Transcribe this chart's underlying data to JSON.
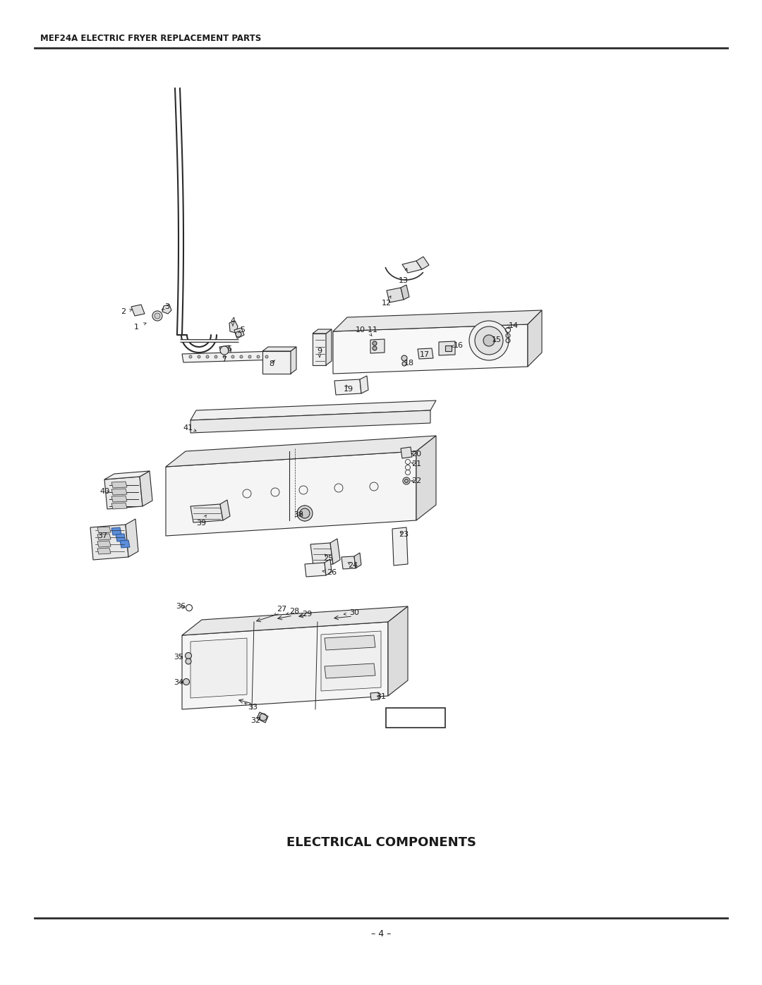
{
  "title_header": "MEF24A ELECTRIC FRYER REPLACEMENT PARTS",
  "title_main": "ELECTRICAL COMPONENTS",
  "page_number": "– 4 –",
  "background_color": "#ffffff",
  "line_color": "#2a2a2a",
  "header_font_size": 8.5,
  "title_font_size": 13,
  "page_num_font_size": 9,
  "label_fontsize": 8.0
}
